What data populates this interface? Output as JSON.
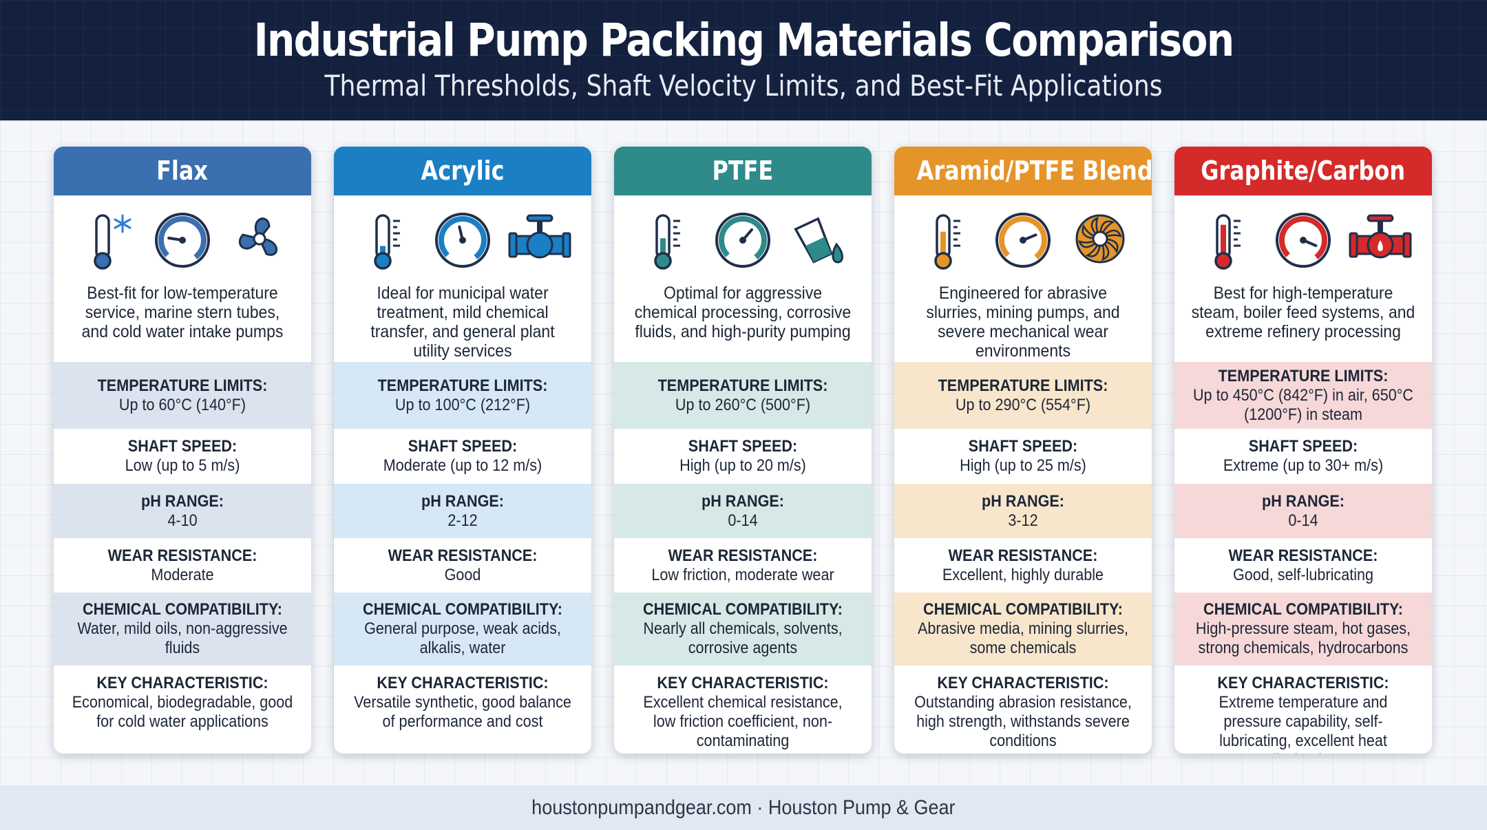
{
  "header": {
    "title": "Industrial Pump Packing Materials Comparison",
    "subtitle": "Thermal Thresholds, Shaft Velocity Limits, and Best-Fit Applications"
  },
  "labels": {
    "temperature": "TEMPERATURE LIMITS:",
    "speed": "SHAFT SPEED:",
    "ph": "pH RANGE:",
    "wear": "WEAR RESISTANCE:",
    "chemical": "CHEMICAL COMPATIBILITY:",
    "key": "KEY CHARACTERISTIC:"
  },
  "cards": [
    {
      "name": "Flax",
      "color": "#3a6fb0",
      "tint": "#dbe3ee",
      "icons": [
        "thermometer-snowflake-icon",
        "gauge-low-icon",
        "propeller-icon"
      ],
      "desc": "Best-fit for low-temperature service, marine stern tubes, and cold water intake pumps",
      "temperature": "Up to 60°C (140°F)",
      "speed": "Low (up to 5 m/s)",
      "ph": "4-10",
      "wear": "Moderate",
      "chemical": "Water, mild oils, non-aggressive fluids",
      "key": "Economical, biodegradable, good for cold water applications",
      "gauge": 0.2
    },
    {
      "name": "Acrylic",
      "color": "#1b7fc4",
      "tint": "#d6e8f5",
      "icons": [
        "thermometer-medium-icon",
        "gauge-medium-icon",
        "valve-pipe-icon"
      ],
      "desc": "Ideal for municipal water treatment, mild chemical transfer, and general plant utility services",
      "temperature": "Up to 100°C (212°F)",
      "speed": "Moderate (up to 12 m/s)",
      "ph": "2-12",
      "wear": "Good",
      "chemical": "General purpose, weak acids, alkalis, water",
      "key": "Versatile synthetic, good balance of performance and cost",
      "gauge": 0.45
    },
    {
      "name": "PTFE",
      "color": "#2f8a8a",
      "tint": "#d6e9e7",
      "icons": [
        "thermometer-high-icon",
        "gauge-high-icon",
        "beaker-drop-icon"
      ],
      "desc": "Optimal for aggressive chemical processing, corrosive fluids, and high-purity pumping",
      "temperature": "Up to 260°C (500°F)",
      "speed": "High (up to 20 m/s)",
      "ph": "0-14",
      "wear": "Low friction, moderate wear",
      "chemical": "Nearly all chemicals, solvents, corrosive agents",
      "key": "Excellent chemical resistance, low friction coefficient, non-contaminating",
      "gauge": 0.65
    },
    {
      "name": "Aramid/PTFE Blend",
      "color": "#e5942a",
      "tint": "#f8e6cc",
      "icons": [
        "thermometer-hot-icon",
        "gauge-very-high-icon",
        "impeller-icon"
      ],
      "desc": "Engineered for abrasive slurries, mining pumps, and severe mechanical wear environments",
      "temperature": "Up to 290°C (554°F)",
      "speed": "High (up to 25 m/s)",
      "ph": "3-12",
      "wear": "Excellent, highly durable",
      "chemical": "Abrasive media, mining slurries, some chemicals",
      "key": "Outstanding abrasion resistance, high strength, withstands severe conditions",
      "gauge": 0.75
    },
    {
      "name": "Graphite/Carbon",
      "color": "#d42a2a",
      "tint": "#f6d8d8",
      "icons": [
        "thermometer-extreme-icon",
        "gauge-max-icon",
        "steam-valve-icon"
      ],
      "desc": "Best for high-temperature steam, boiler feed systems, and extreme refinery processing",
      "temperature": "Up to 450°C (842°F) in air, 650°C (1200°F) in steam",
      "speed": "Extreme (up to 30+ m/s)",
      "ph": "0-14",
      "wear": "Good, self-lubricating",
      "chemical": "High-pressure steam, hot gases, strong chemicals, hydrocarbons",
      "key": "Extreme temperature and pressure capability, self-lubricating, excellent heat dissipation",
      "gauge": 0.92
    }
  ],
  "footer": {
    "text": "houstonpumpandgear.com · Houston Pump & Gear"
  }
}
